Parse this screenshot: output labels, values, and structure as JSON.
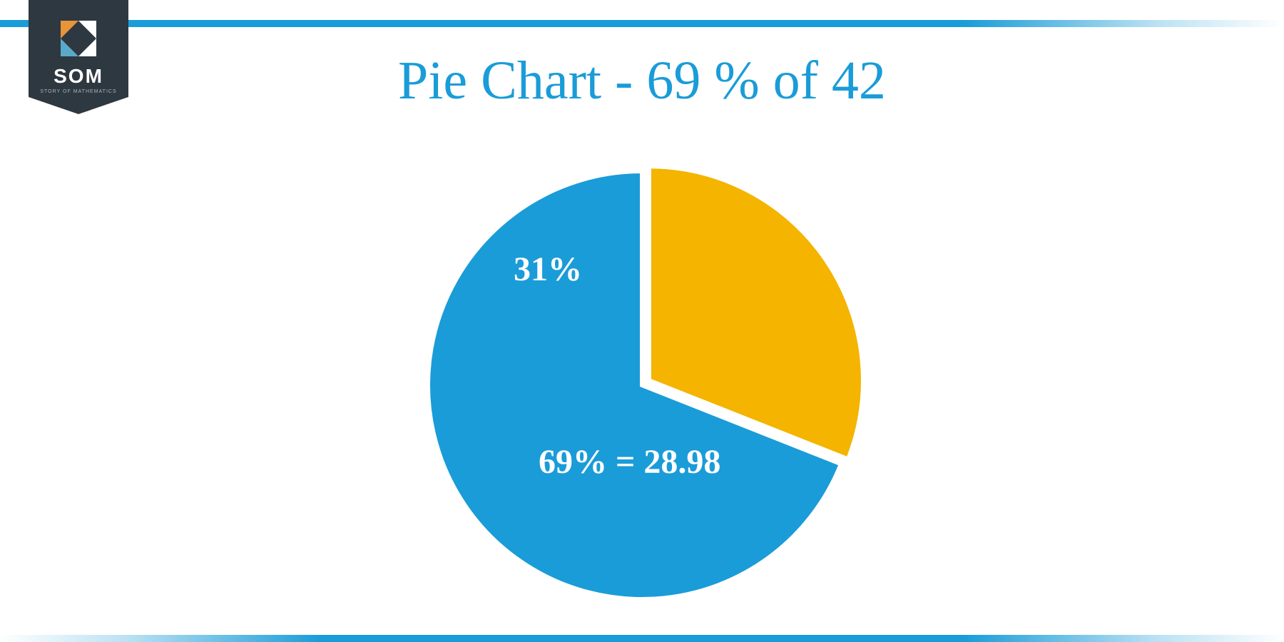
{
  "logo": {
    "text": "SOM",
    "subtext": "STORY OF MATHEMATICS",
    "background": "#2e3841",
    "textColor": "#ffffff",
    "iconColors": {
      "topLeft": "#e8943a",
      "topRight": "#ffffff",
      "bottomLeft": "#5ba9c9",
      "bottomRight": "#ffffff"
    }
  },
  "title": {
    "text": "Pie Chart - 69 % of 42",
    "color": "#1a9cd8",
    "fontSize": 76
  },
  "chart": {
    "type": "pie",
    "slices": [
      {
        "label": "31%",
        "value": 31,
        "color": "#f4b400",
        "exploded": true,
        "explodeOffset": 12,
        "labelColor": "#ffffff",
        "labelFontSize": 48
      },
      {
        "label": "69% = 28.98",
        "value": 69,
        "color": "#1a9cd8",
        "exploded": false,
        "labelColor": "#ffffff",
        "labelFontSize": 48
      }
    ],
    "radius": 300,
    "background": "#ffffff",
    "strokeColor": "#ffffff",
    "strokeWidth": 6,
    "startAngle": -90
  },
  "topBar": {
    "color": "#1a9cd8",
    "height": 10
  },
  "bottomBar": {
    "color": "#1a9cd8",
    "height": 10
  }
}
